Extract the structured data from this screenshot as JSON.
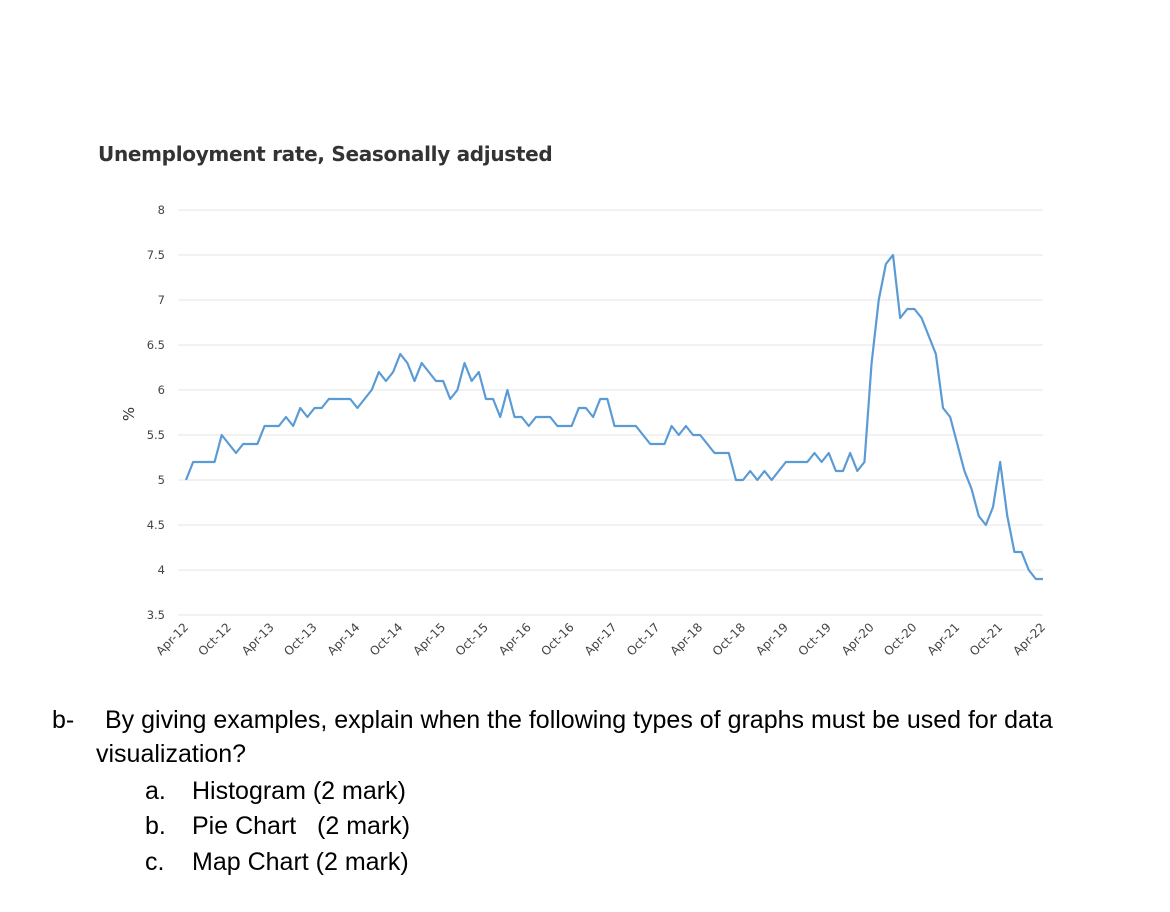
{
  "chart_data": {
    "type": "line",
    "title": "Unemployment rate, Seasonally adjusted",
    "ylabel": "%",
    "xlabel": "",
    "ylim": [
      3.5,
      8
    ],
    "yticks": [
      "8",
      "7.5",
      "7",
      "6.5",
      "6",
      "5.5",
      "5",
      "4.5",
      "4",
      "3.5"
    ],
    "xtick_labels": [
      "Apr-12",
      "Oct-12",
      "Apr-13",
      "Oct-13",
      "Apr-14",
      "Oct-14",
      "Apr-15",
      "Oct-15",
      "Apr-16",
      "Oct-16",
      "Apr-17",
      "Oct-17",
      "Apr-18",
      "Oct-18",
      "Apr-19",
      "Oct-19",
      "Apr-20",
      "Oct-20",
      "Apr-21",
      "Oct-21",
      "Apr-22"
    ],
    "grid": "horizontal",
    "line_color": "#5b9bd5",
    "series": [
      {
        "values": [
          5.0,
          5.2,
          5.2,
          5.2,
          5.2,
          5.5,
          5.4,
          5.3,
          5.4,
          5.4,
          5.4,
          5.6,
          5.6,
          5.6,
          5.7,
          5.6,
          5.8,
          5.7,
          5.8,
          5.8,
          5.9,
          5.9,
          5.9,
          5.9,
          5.8,
          5.9,
          6.0,
          6.2,
          6.1,
          6.2,
          6.4,
          6.3,
          6.1,
          6.3,
          6.2,
          6.1,
          6.1,
          5.9,
          6.0,
          6.3,
          6.1,
          6.2,
          5.9,
          5.9,
          5.7,
          6.0,
          5.7,
          5.7,
          5.6,
          5.7,
          5.7,
          5.7,
          5.6,
          5.6,
          5.6,
          5.8,
          5.8,
          5.7,
          5.9,
          5.9,
          5.6,
          5.6,
          5.6,
          5.6,
          5.5,
          5.4,
          5.4,
          5.4,
          5.6,
          5.5,
          5.6,
          5.5,
          5.5,
          5.4,
          5.3,
          5.3,
          5.3,
          5.0,
          5.0,
          5.1,
          5.0,
          5.1,
          5.0,
          5.1,
          5.2,
          5.2,
          5.2,
          5.2,
          5.3,
          5.2,
          5.3,
          5.1,
          5.1,
          5.3,
          5.1,
          5.2,
          6.3,
          7.0,
          7.4,
          7.5,
          6.8,
          6.9,
          6.9,
          6.8,
          6.6,
          6.4,
          5.8,
          5.7,
          5.4,
          5.1,
          4.9,
          4.6,
          4.5,
          4.7,
          5.2,
          4.6,
          4.2,
          4.2,
          4.0,
          3.9,
          3.9
        ]
      }
    ]
  },
  "question": {
    "prefix": "b-",
    "line1": "By giving examples, explain when the following types of graphs must be used for data",
    "line2": "visualization?",
    "items": [
      {
        "letter": "a.",
        "text": "Histogram (2 mark)"
      },
      {
        "letter": "b.",
        "text": "Pie Chart   (2 mark)"
      },
      {
        "letter": "c.",
        "text": "Map Chart (2 mark)"
      }
    ]
  }
}
